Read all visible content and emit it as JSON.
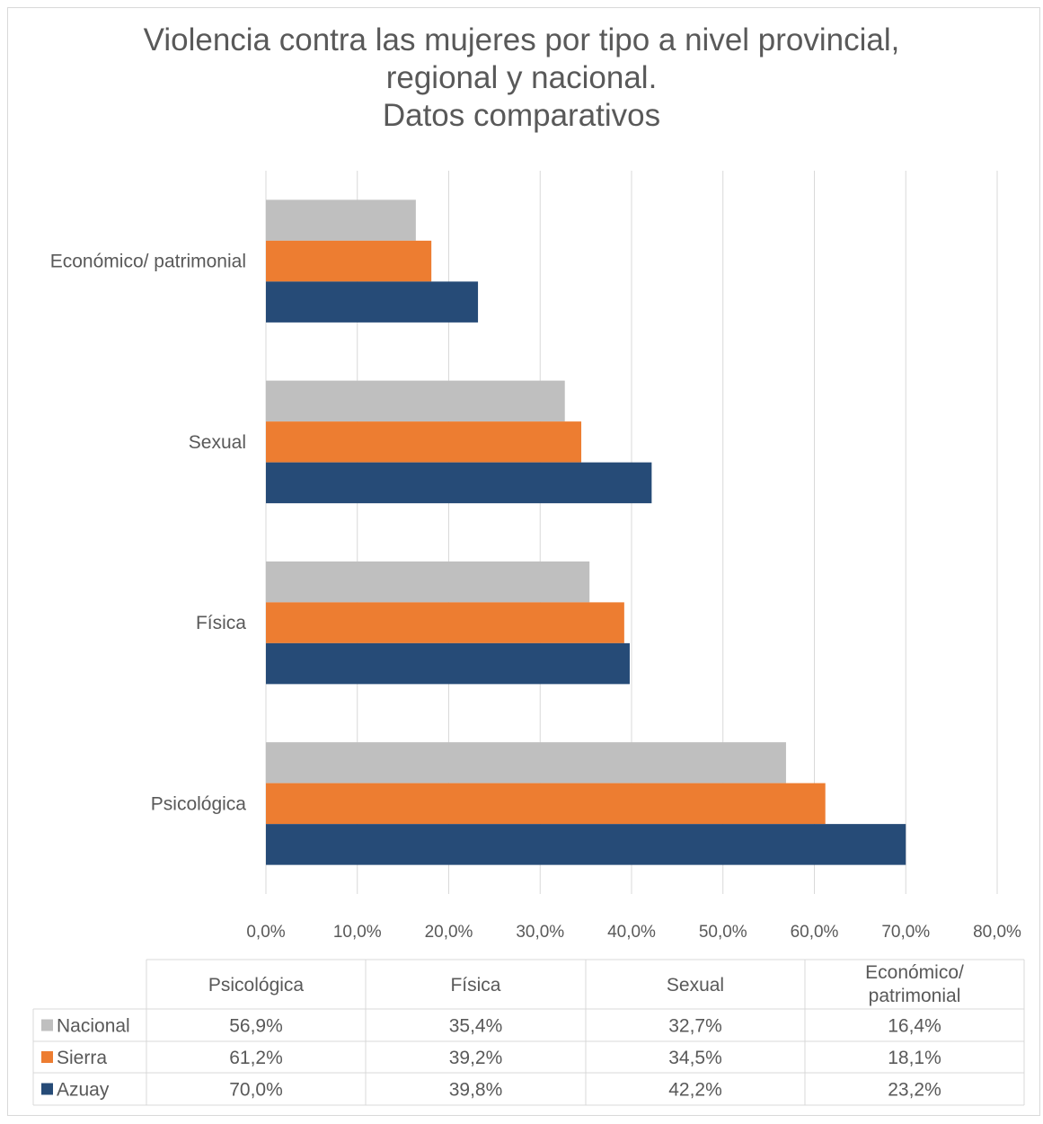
{
  "chart_data": {
    "type": "bar",
    "orientation": "horizontal",
    "title": "Violencia contra las mujeres por tipo a nivel provincial,\nregional y nacional.\nDatos comparativos",
    "categories": [
      "Psicológica",
      "Física",
      "Sexual",
      "Económico/ patrimonial"
    ],
    "table_headers": [
      "Psicológica",
      "Física",
      "Sexual",
      "Económico/\npatrimonial"
    ],
    "series": [
      {
        "name": "Nacional",
        "color": "#bfbfbf",
        "values": [
          56.9,
          35.4,
          32.7,
          16.4
        ],
        "labels": [
          "56,9%",
          "35,4%",
          "32,7%",
          "16,4%"
        ]
      },
      {
        "name": "Sierra",
        "color": "#ed7d31",
        "values": [
          61.2,
          39.2,
          34.5,
          18.1
        ],
        "labels": [
          "61,2%",
          "39,2%",
          "34,5%",
          "18,1%"
        ]
      },
      {
        "name": "Azuay",
        "color": "#264b77",
        "values": [
          70.0,
          39.8,
          42.2,
          23.2
        ],
        "labels": [
          "70,0%",
          "39,8%",
          "42,2%",
          "23,2%"
        ]
      }
    ],
    "xlim": [
      0,
      80
    ],
    "xticks": [
      "0,0%",
      "10,0%",
      "20,0%",
      "30,0%",
      "40,0%",
      "50,0%",
      "60,0%",
      "70,0%",
      "80,0%"
    ],
    "grid": true,
    "legend": "data-table"
  }
}
